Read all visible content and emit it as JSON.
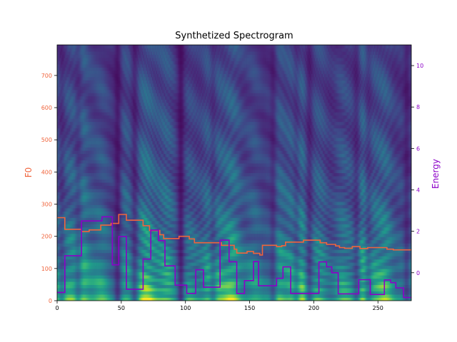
{
  "chart_data": {
    "type": "line",
    "title": "Synthetized Spectrogram",
    "background": "heatmap",
    "colormap": "viridis",
    "frames": 276,
    "mel_bins": 80,
    "xlim": [
      0,
      276
    ],
    "xticks": [
      0,
      50,
      100,
      150,
      200,
      250
    ],
    "left_axis": {
      "label": "F0",
      "color": "#f0643c",
      "ylim": [
        0,
        795
      ],
      "ticks": [
        0,
        100,
        200,
        300,
        400,
        500,
        600,
        700
      ]
    },
    "right_axis": {
      "label": "Energy",
      "color": "#8c00c8",
      "ylim": [
        -1.35,
        11
      ],
      "ticks": [
        0,
        2,
        4,
        6,
        8,
        10
      ]
    },
    "series": [
      {
        "name": "F0",
        "axis": "left",
        "color": "#f0643c",
        "x": [
          0,
          6,
          6,
          19,
          19,
          25,
          25,
          34,
          34,
          42,
          42,
          48,
          48,
          54,
          54,
          67,
          67,
          72,
          72,
          80,
          80,
          83,
          83,
          95,
          95,
          103,
          103,
          107,
          107,
          128,
          128,
          138,
          138,
          140,
          140,
          148,
          148,
          153,
          153,
          158,
          158,
          160,
          160,
          171,
          171,
          175,
          175,
          178,
          178,
          192,
          192,
          205,
          205,
          210,
          210,
          217,
          217,
          220,
          220,
          224,
          224,
          230,
          230,
          236,
          236,
          242,
          242,
          257,
          257,
          262,
          262,
          270,
          270,
          276
        ],
        "y": [
          258,
          258,
          222,
          222,
          215,
          215,
          220,
          220,
          235,
          235,
          240,
          240,
          268,
          268,
          250,
          250,
          233,
          233,
          218,
          218,
          205,
          205,
          193,
          193,
          200,
          200,
          192,
          192,
          180,
          180,
          172,
          172,
          160,
          160,
          148,
          148,
          153,
          153,
          147,
          147,
          142,
          142,
          172,
          172,
          168,
          168,
          171,
          171,
          182,
          182,
          188,
          188,
          180,
          180,
          175,
          175,
          170,
          170,
          165,
          165,
          163,
          163,
          168,
          168,
          162,
          162,
          165,
          165,
          160,
          160,
          158,
          158,
          158,
          158
        ]
      },
      {
        "name": "Energy",
        "axis": "right",
        "color": "#8c00c8",
        "x": [
          0,
          6,
          6,
          19,
          19,
          35,
          35,
          43,
          43,
          48,
          48,
          54,
          54,
          67,
          67,
          73,
          73,
          79,
          79,
          84,
          84,
          92,
          92,
          101,
          101,
          108,
          108,
          114,
          114,
          127,
          127,
          134,
          134,
          140,
          140,
          146,
          146,
          153,
          153,
          157,
          157,
          171,
          171,
          176,
          176,
          182,
          182,
          204,
          204,
          210,
          210,
          214,
          214,
          219,
          219,
          235,
          235,
          244,
          244,
          255,
          255,
          260,
          260,
          264,
          264,
          270,
          270,
          274,
          274,
          276
        ],
        "y": [
          -0.95,
          -0.95,
          0.82,
          0.82,
          2.5,
          2.5,
          2.7,
          2.7,
          0.38,
          0.38,
          1.75,
          1.75,
          -0.8,
          -0.8,
          0.66,
          0.66,
          2.06,
          2.06,
          1.55,
          1.55,
          0.33,
          0.33,
          -0.6,
          -0.6,
          -1.0,
          -1.0,
          0.14,
          0.14,
          -0.7,
          -0.7,
          1.57,
          1.57,
          0.53,
          0.53,
          -1.0,
          -1.0,
          -0.38,
          -0.38,
          0.54,
          0.54,
          -0.63,
          -0.63,
          -0.27,
          -0.27,
          0.28,
          0.28,
          -1.0,
          -1.0,
          0.52,
          0.52,
          0.28,
          0.28,
          0.0,
          0.0,
          -1.02,
          -1.02,
          -0.34,
          -0.34,
          -1.05,
          -1.05,
          -0.35,
          -0.35,
          -0.48,
          -0.48,
          -0.73,
          -0.73,
          -1.2,
          -1.2,
          -1.2,
          -1.2
        ]
      }
    ]
  }
}
